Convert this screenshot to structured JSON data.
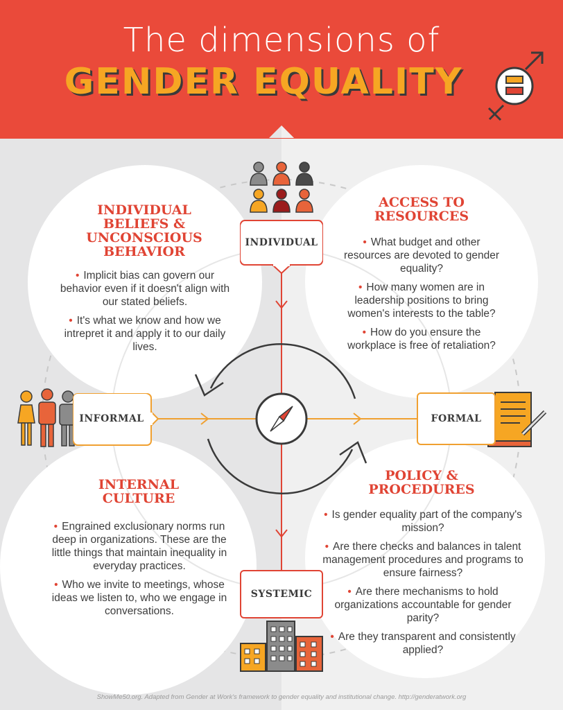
{
  "header": {
    "title_line1": "The dimensions of",
    "title_line2": "GENDER EQUALITY"
  },
  "axis": {
    "top": "INDIVIDUAL",
    "bottom": "SYSTEMIC",
    "left": "INFORMAL",
    "right": "FORMAL"
  },
  "quadrants": {
    "individual_beliefs": {
      "heading": [
        "INDIVIDUAL",
        "BELIEFS &",
        "UNCONSCIOUS",
        "BEHAVIOR"
      ],
      "bullets": [
        "Implicit bias can govern our behavior even if it doesn't align with our stated beliefs.",
        "It's what we know and how we intrepret it and apply it to our daily lives."
      ]
    },
    "access_to_resources": {
      "heading": [
        "ACCESS TO",
        "RESOURCES"
      ],
      "bullets": [
        "What budget and other resources are devoted to gender equality?",
        "How many women are in leadership positions to bring women's interests to the table?",
        "How do you ensure the workplace is free of retaliation?"
      ]
    },
    "internal_culture": {
      "heading": [
        "INTERNAL",
        "CULTURE"
      ],
      "bullets": [
        "Engrained exclusionary norms run deep in organizations. These are the little things that maintain inequality in everyday practices.",
        "Who we invite to meetings, whose ideas we listen to, who we engage in conversations."
      ]
    },
    "policy_procedures": {
      "heading": [
        "POLICY &",
        "PROCEDURES"
      ],
      "bullets": [
        "Is gender equality part of the company's mission?",
        "Are there checks and balances in talent management procedures and programs to ensure fairness?",
        "Are there mechanisms to hold organizations accountable for gender parity?",
        "Are they transparent and consistently applied?"
      ]
    }
  },
  "footer": "ShowMe50.org. Adapted from Gender at Work's framework to gender equality and institutional change. http://genderatwork.org",
  "icons": [
    "gender-symbol-icon",
    "people-group-icon",
    "family-icon",
    "document-scroll-icon",
    "buildings-icon",
    "compass-icon"
  ],
  "colors": {
    "red": "#e04434",
    "header_red": "#ea4a3a",
    "orange": "#f6a623",
    "dark": "#3d3d3d",
    "grey": "#6b6b6b"
  }
}
